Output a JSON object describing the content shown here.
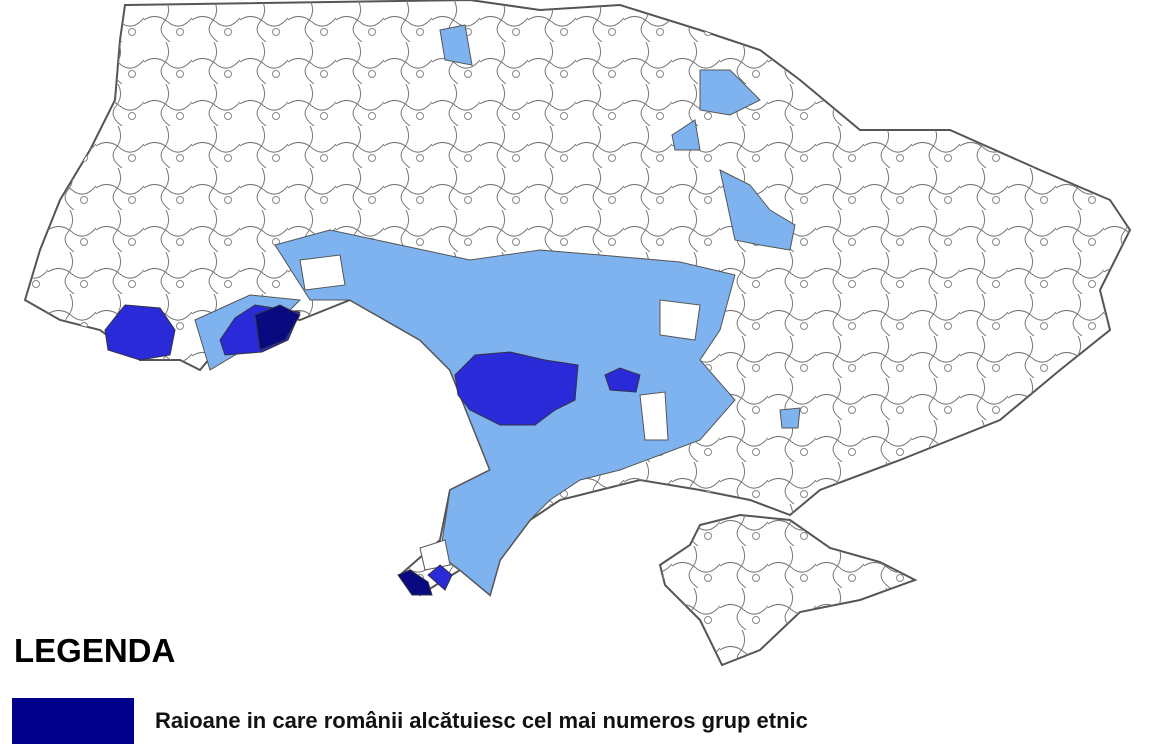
{
  "legend": {
    "title": "LEGENDA",
    "items": [
      {
        "label": "Raioane in care românii alcătuiesc cel mai numeros grup etnic"
      }
    ]
  }
}
